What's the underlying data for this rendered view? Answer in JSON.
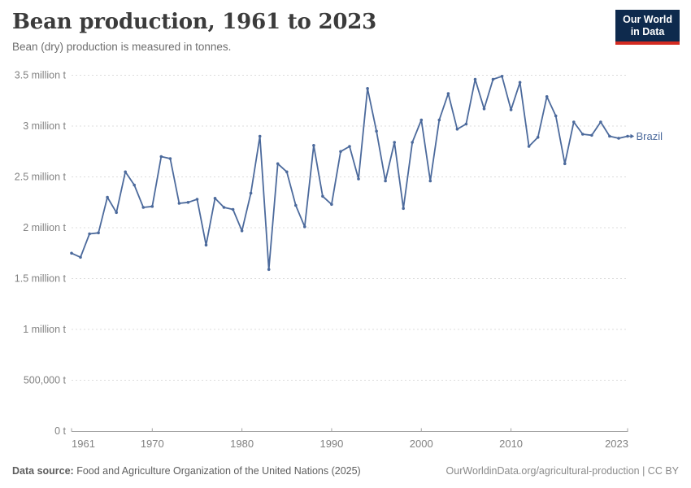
{
  "header": {
    "title": "Bean production, 1961 to 2023",
    "subtitle": "Bean (dry) production is measured in tonnes.",
    "logo": {
      "line1": "Our World",
      "line2": "in Data"
    }
  },
  "theme": {
    "title-color": "#3b3b3b",
    "subtitle-color": "#6e6e6e",
    "footer-color": "#5e5e5e",
    "credit-color": "#8a8a8a",
    "logo-bg": "#0e2a4d",
    "logo-red": "#d42b21"
  },
  "chart_data": {
    "type": "line",
    "title": "Bean production, 1961 to 2023",
    "subtitle": "Bean (dry) production is measured in tonnes.",
    "unit": "tonnes",
    "xlim": [
      1961,
      2023
    ],
    "ylim": [
      0,
      3500000
    ],
    "grid": "horizontal dashed",
    "legend": "end-of-line label",
    "colors": {
      "grid": "#dcdcdc",
      "axis": "#a3a3a3",
      "tick": "#828282"
    },
    "y_ticks": [
      {
        "value": 0,
        "label": "0 t"
      },
      {
        "value": 500000,
        "label": "500,000 t"
      },
      {
        "value": 1000000,
        "label": "1 million t"
      },
      {
        "value": 1500000,
        "label": "1.5 million t"
      },
      {
        "value": 2000000,
        "label": "2 million t"
      },
      {
        "value": 2500000,
        "label": "2.5 million t"
      },
      {
        "value": 3000000,
        "label": "3 million t"
      },
      {
        "value": 3500000,
        "label": "3.5 million t"
      }
    ],
    "x_ticks": [
      {
        "value": 1961,
        "label": "1961"
      },
      {
        "value": 1970,
        "label": "1970"
      },
      {
        "value": 1980,
        "label": "1980"
      },
      {
        "value": 1990,
        "label": "1990"
      },
      {
        "value": 2000,
        "label": "2000"
      },
      {
        "value": 2010,
        "label": "2010"
      },
      {
        "value": 2023,
        "label": "2023"
      }
    ],
    "series": [
      {
        "name": "Brazil",
        "color": "#4c6a9c",
        "x": [
          1961,
          1962,
          1963,
          1964,
          1965,
          1966,
          1967,
          1968,
          1969,
          1970,
          1971,
          1972,
          1973,
          1974,
          1975,
          1976,
          1977,
          1978,
          1979,
          1980,
          1981,
          1982,
          1983,
          1984,
          1985,
          1986,
          1987,
          1988,
          1989,
          1990,
          1991,
          1992,
          1993,
          1994,
          1995,
          1996,
          1997,
          1998,
          1999,
          2000,
          2001,
          2002,
          2003,
          2004,
          2005,
          2006,
          2007,
          2008,
          2009,
          2010,
          2011,
          2012,
          2013,
          2014,
          2015,
          2016,
          2017,
          2018,
          2019,
          2020,
          2021,
          2022,
          2023
        ],
        "values": [
          1750000,
          1710000,
          1940000,
          1950000,
          2300000,
          2150000,
          2550000,
          2420000,
          2200000,
          2210000,
          2700000,
          2680000,
          2240000,
          2250000,
          2280000,
          1830000,
          2290000,
          2200000,
          2180000,
          1970000,
          2340000,
          2900000,
          1590000,
          2630000,
          2550000,
          2220000,
          2010000,
          2810000,
          2310000,
          2230000,
          2750000,
          2800000,
          2480000,
          3370000,
          2950000,
          2460000,
          2840000,
          2190000,
          2840000,
          3060000,
          2460000,
          3060000,
          3320000,
          2970000,
          3020000,
          3460000,
          3170000,
          3460000,
          3490000,
          3160000,
          3430000,
          2800000,
          2890000,
          3290000,
          3100000,
          2630000,
          3040000,
          2920000,
          2910000,
          3040000,
          2900000,
          2880000,
          2900000
        ]
      }
    ]
  },
  "footer": {
    "source_prefix": "Data source:",
    "source_text": " Food and Agriculture Organization of the United Nations (2025)",
    "credit": "OurWorldinData.org/agricultural-production | CC BY"
  }
}
